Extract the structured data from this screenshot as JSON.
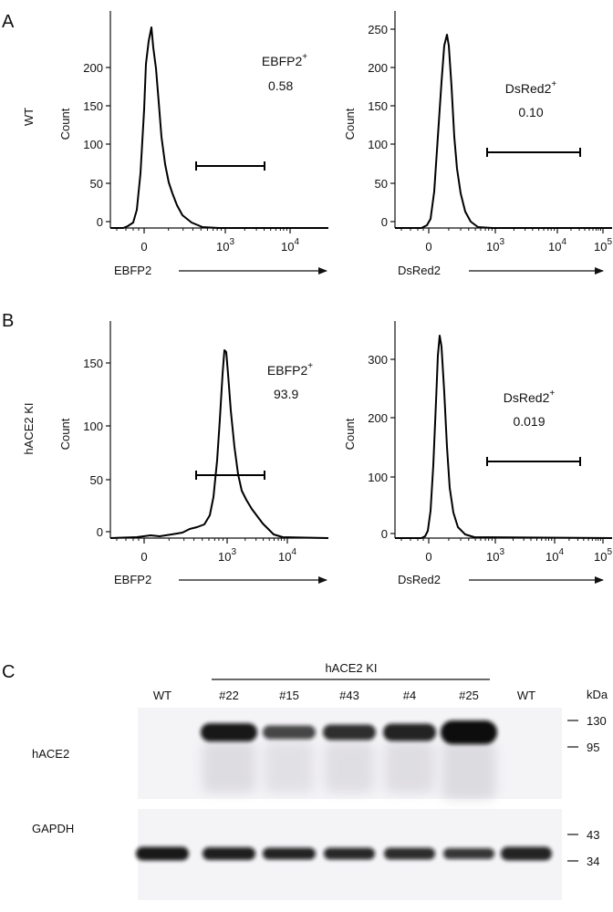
{
  "panel_labels": {
    "a": "A",
    "b": "B",
    "c": "C"
  },
  "rows": {
    "a": {
      "label": "WT"
    },
    "b": {
      "label": "hACE2 KI"
    }
  },
  "flow": {
    "ylabel": "Count",
    "plots": [
      {
        "id": "a1",
        "xlabel": "EBFP2",
        "gate_name": "EBFP2",
        "gate_sup": "+",
        "gate_value": "0.58",
        "yticks": [
          {
            "v": 0,
            "label": "0"
          },
          {
            "v": 50,
            "label": "50"
          },
          {
            "v": 100,
            "label": "100"
          },
          {
            "v": 150,
            "label": "150"
          },
          {
            "v": 200,
            "label": "200"
          }
        ],
        "xticks": [
          {
            "label": "0",
            "base": "0",
            "exp": ""
          },
          {
            "label": "10^3",
            "base": "10",
            "exp": "3"
          },
          {
            "label": "10^4",
            "base": "10",
            "exp": "4"
          }
        ]
      },
      {
        "id": "a2",
        "xlabel": "DsRed2",
        "gate_name": "DsRed2",
        "gate_sup": "+",
        "gate_value": "0.10",
        "yticks": [
          {
            "v": 0,
            "label": "0"
          },
          {
            "v": 50,
            "label": "50"
          },
          {
            "v": 100,
            "label": "100"
          },
          {
            "v": 150,
            "label": "150"
          },
          {
            "v": 200,
            "label": "200"
          },
          {
            "v": 250,
            "label": "250"
          }
        ],
        "xticks": [
          {
            "label": "0",
            "base": "0",
            "exp": ""
          },
          {
            "label": "10^3",
            "base": "10",
            "exp": "3"
          },
          {
            "label": "10^4",
            "base": "10",
            "exp": "4"
          },
          {
            "label": "10^5",
            "base": "10",
            "exp": "5"
          }
        ]
      },
      {
        "id": "b1",
        "xlabel": "EBFP2",
        "gate_name": "EBFP2",
        "gate_sup": "+",
        "gate_value": "93.9",
        "yticks": [
          {
            "v": 0,
            "label": "0"
          },
          {
            "v": 50,
            "label": "50"
          },
          {
            "v": 100,
            "label": "100"
          },
          {
            "v": 150,
            "label": "150"
          }
        ],
        "xticks": [
          {
            "label": "0",
            "base": "0",
            "exp": ""
          },
          {
            "label": "10^3",
            "base": "10",
            "exp": "3"
          },
          {
            "label": "10^4",
            "base": "10",
            "exp": "4"
          }
        ]
      },
      {
        "id": "b2",
        "xlabel": "DsRed2",
        "gate_name": "DsRed2",
        "gate_sup": "+",
        "gate_value": "0.019",
        "yticks": [
          {
            "v": 0,
            "label": "0"
          },
          {
            "v": 100,
            "label": "100"
          },
          {
            "v": 200,
            "label": "200"
          },
          {
            "v": 300,
            "label": "300"
          }
        ],
        "xticks": [
          {
            "label": "0",
            "base": "0",
            "exp": ""
          },
          {
            "label": "10^3",
            "base": "10",
            "exp": "3"
          },
          {
            "label": "10^4",
            "base": "10",
            "exp": "4"
          },
          {
            "label": "10^5",
            "base": "10",
            "exp": "5"
          }
        ]
      }
    ]
  },
  "western": {
    "group_label": "hACE2 KI",
    "lanes": [
      "WT",
      "#22",
      "#15",
      "#43",
      "#4",
      "#25",
      "WT"
    ],
    "mw_unit": "kDa",
    "blots": [
      {
        "name": "hACE2",
        "markers": [
          "130",
          "95"
        ],
        "band_intensity": [
          0,
          0.95,
          0.75,
          0.85,
          0.9,
          1.0,
          0
        ]
      },
      {
        "name": "GAPDH",
        "markers": [
          "43",
          "34"
        ],
        "band_intensity": [
          0.95,
          0.92,
          0.9,
          0.88,
          0.86,
          0.82,
          0.9
        ]
      }
    ],
    "colors": {
      "membrane": "#f4f3f6",
      "band": "#0b0b0d"
    }
  }
}
